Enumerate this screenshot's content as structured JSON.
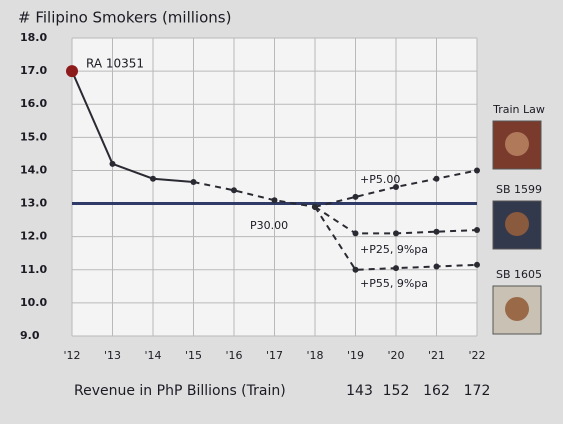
{
  "chart_data": {
    "type": "line",
    "title": "# Filipino Smokers (millions)",
    "categories": [
      "'12",
      "'13",
      "'14",
      "'15",
      "'16",
      "'17",
      "'18",
      "'19",
      "'20",
      "'21",
      "'22"
    ],
    "ylim": [
      9,
      18
    ],
    "yticks": [
      {
        "value": 9,
        "label": "9.0"
      },
      {
        "value": 10,
        "label": "10.0"
      },
      {
        "value": 11,
        "label": "11.0"
      },
      {
        "value": 12,
        "label": "12.0"
      },
      {
        "value": 13,
        "label": "13.0"
      },
      {
        "value": 14,
        "label": "14.0"
      },
      {
        "value": 15,
        "label": "15.0"
      },
      {
        "value": 16,
        "label": "16.0"
      },
      {
        "value": 17,
        "label": "17.0"
      },
      {
        "value": 18,
        "label": "18.0"
      }
    ],
    "grid": true,
    "reference_line": 13,
    "annotation": "RA 10351",
    "series": [
      {
        "name": "P30.00",
        "color": "#2a2a33",
        "dashed_from": 3,
        "values": [
          17.0,
          14.2,
          13.75,
          13.65,
          13.4,
          13.1,
          12.9,
          null,
          null,
          null,
          null
        ]
      },
      {
        "name": "+P5.00",
        "color": "#2a2a33",
        "dashed_from": 0,
        "values": [
          null,
          null,
          null,
          null,
          null,
          null,
          12.9,
          13.2,
          13.5,
          13.75,
          14.0
        ]
      },
      {
        "name": "+P25, 9%pa",
        "color": "#2a2a33",
        "dashed_from": 0,
        "values": [
          null,
          null,
          null,
          null,
          null,
          null,
          12.9,
          12.1,
          12.1,
          12.15,
          12.2
        ]
      },
      {
        "name": "+P55, 9%pa",
        "color": "#2a2a33",
        "dashed_from": 0,
        "values": [
          null,
          null,
          null,
          null,
          null,
          null,
          12.9,
          11.0,
          11.05,
          11.1,
          11.15
        ]
      }
    ],
    "revenue": {
      "label": "Revenue in PhP Billions  (Train)",
      "categories": [
        "'19",
        "'20",
        "'21",
        "'22"
      ],
      "values": [
        143,
        152,
        162,
        172
      ]
    },
    "panels": [
      "Train Law",
      "SB 1599",
      "SB 1605"
    ]
  }
}
